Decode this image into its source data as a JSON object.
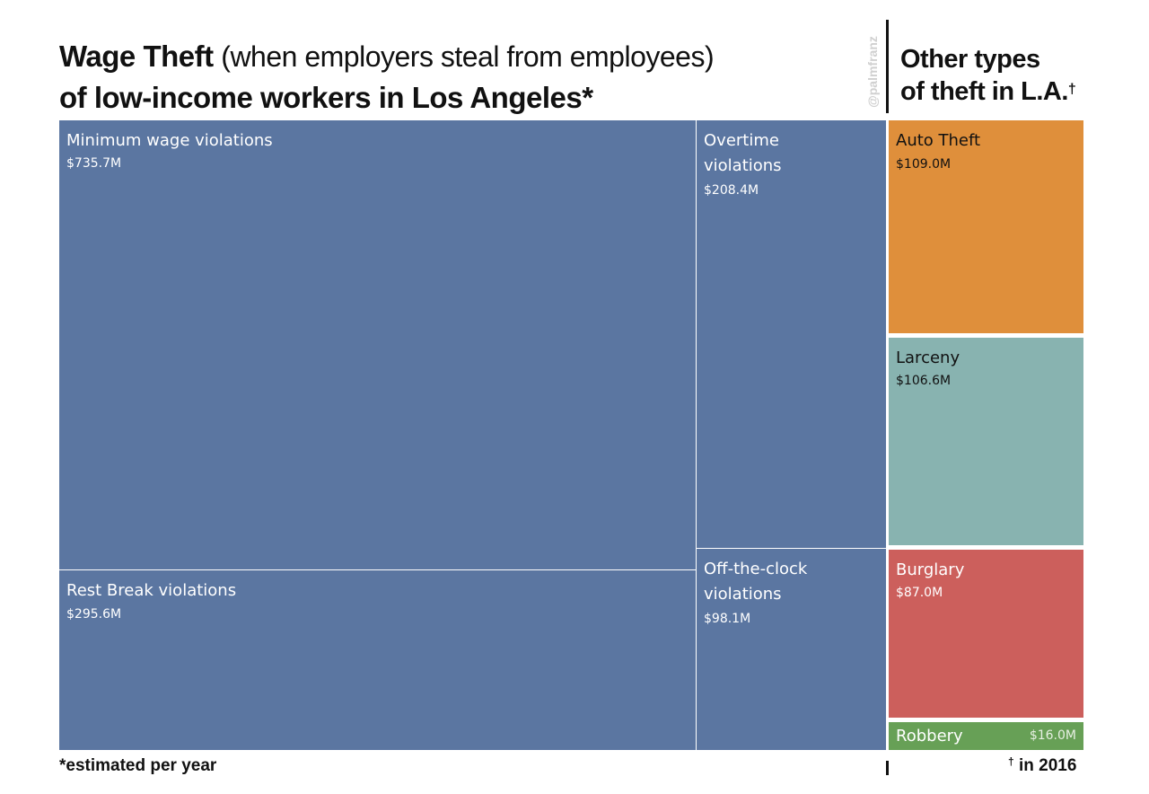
{
  "header": {
    "title_bold_1": "Wage Theft",
    "title_light": "(when employers steal from employees)",
    "title_bold_2": "of low-income workers in Los Angeles*",
    "right_title_line1": "Other types",
    "right_title_line2": "of theft in L.A.",
    "right_title_mark": "†",
    "credit": "@palmfranz"
  },
  "footer": {
    "left_note": "*estimated per year",
    "right_mark": "†",
    "right_note": "in 2016"
  },
  "chart_data": {
    "type": "treemap",
    "title": "Wage Theft (when employers steal from employees) of low-income workers in Los Angeles*",
    "groups": [
      {
        "name": "Wage Theft",
        "items": [
          {
            "label": "Minimum wage violations",
            "value": 735.7,
            "value_label": "$735.7M",
            "color": "#5b76a1"
          },
          {
            "label": "Rest Break violations",
            "value": 295.6,
            "value_label": "$295.6M",
            "color": "#5b76a1"
          },
          {
            "label": "Overtime violations",
            "value": 208.4,
            "value_label": "$208.4M",
            "color": "#5b76a1"
          },
          {
            "label": "Off-the-clock violations",
            "value": 98.1,
            "value_label": "$98.1M",
            "color": "#5b76a1"
          }
        ]
      },
      {
        "name": "Other types of theft in L.A.",
        "items": [
          {
            "label": "Auto Theft",
            "value": 109.0,
            "value_label": "$109.0M",
            "color": "#df8f3b"
          },
          {
            "label": "Larceny",
            "value": 106.6,
            "value_label": "$106.6M",
            "color": "#88b3b0"
          },
          {
            "label": "Burglary",
            "value": 87.0,
            "value_label": "$87.0M",
            "color": "#cc5f5c"
          },
          {
            "label": "Robbery",
            "value": 16.0,
            "value_label": "$16.0M",
            "color": "#67a056"
          }
        ]
      }
    ]
  }
}
